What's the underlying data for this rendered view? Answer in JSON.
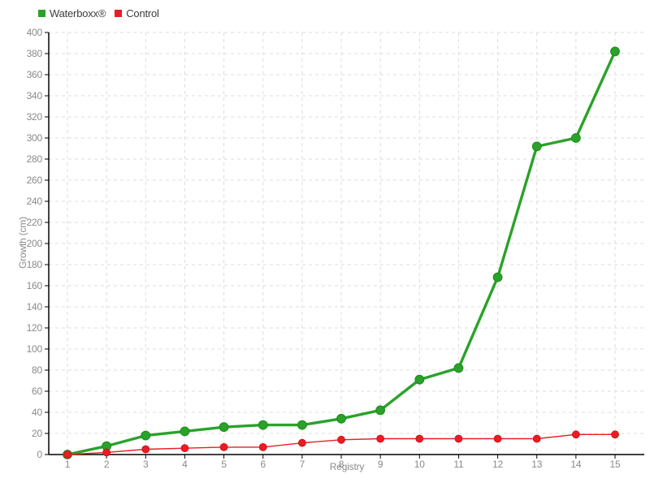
{
  "chart_data": {
    "type": "line",
    "title": "",
    "xlabel": "Registry",
    "ylabel": "Growth (cm)",
    "x": [
      "1",
      "2",
      "3",
      "4",
      "5",
      "6",
      "7",
      "8",
      "9",
      "10",
      "11",
      "12",
      "13",
      "14",
      "15"
    ],
    "ylim": [
      0,
      400
    ],
    "ytick_step": 20,
    "y_tick_labels": [
      "0",
      "20",
      "40",
      "60",
      "80",
      "100",
      "120",
      "140",
      "160",
      "180",
      "200",
      "220",
      "240",
      "260",
      "280",
      "300",
      "320",
      "340",
      "360",
      "380",
      "400"
    ],
    "grid": true,
    "legend_position": "top-left",
    "series": [
      {
        "name": "Waterboxx®",
        "color": "#2aa22a",
        "marker_stroke": "#1b8c1b",
        "line_width": 3.4,
        "marker_radius": 5.4,
        "values": [
          0,
          8,
          18,
          22,
          26,
          28,
          28,
          34,
          42,
          71,
          82,
          168,
          292,
          300,
          382
        ]
      },
      {
        "name": "Control",
        "color": "#ea1c24",
        "marker_stroke": "#d4121a",
        "line_width": 1.4,
        "marker_radius": 4.4,
        "values": [
          0,
          2,
          5,
          6,
          7,
          7,
          11,
          14,
          15,
          15,
          15,
          15,
          15,
          19,
          19
        ]
      }
    ],
    "colors": {
      "grid": "#dddddd",
      "axis": "#000000",
      "tick_text": "#8a8a8a",
      "legend_text": "#3d3d3d",
      "background": "#ffffff"
    }
  }
}
